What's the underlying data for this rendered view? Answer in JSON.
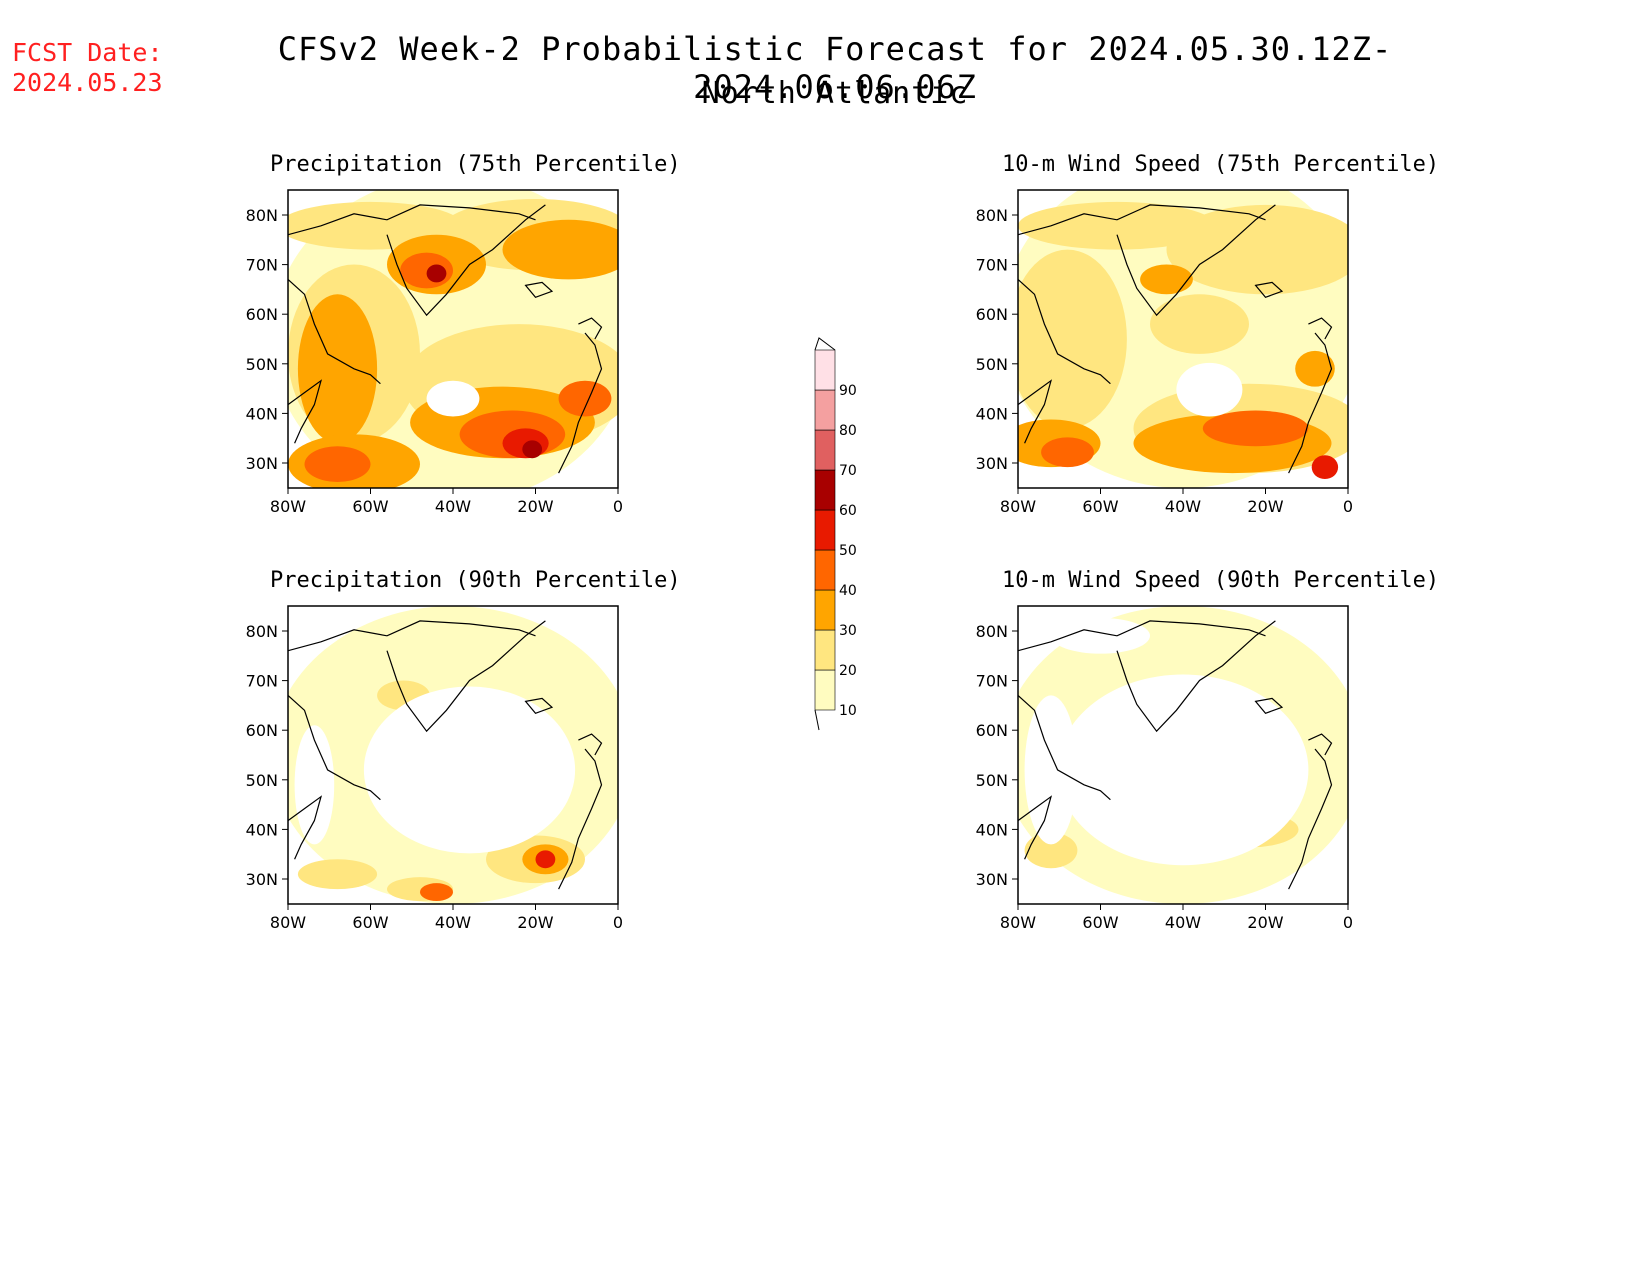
{
  "header": {
    "fcst_label": "FCST Date:",
    "fcst_date": "2024.05.23",
    "title": "CFSv2 Week-2 Probabilistic Forecast for 2024.05.30.12Z-2024.06.06.06Z",
    "region": "North Atlantic"
  },
  "axes": {
    "lat_ticks": [
      "80N",
      "70N",
      "60N",
      "50N",
      "40N",
      "30N"
    ],
    "lon_ticks": [
      "80W",
      "60W",
      "40W",
      "20W",
      "0"
    ]
  },
  "colorbar": {
    "levels": [
      "10",
      "20",
      "30",
      "40",
      "50",
      "60",
      "70",
      "80",
      "90"
    ],
    "colors": [
      "#fffcc0",
      "#ffe680",
      "#ffa500",
      "#ff6600",
      "#e81a00",
      "#a80000",
      "#e06060",
      "#f4a0a0",
      "#ffe0e6"
    ]
  },
  "panels": [
    {
      "id": "precip-75",
      "title": "Precipitation (75th Percentile)",
      "intensity": "high"
    },
    {
      "id": "wind-75",
      "title": "10-m Wind Speed (75th Percentile)",
      "intensity": "medium"
    },
    {
      "id": "precip-90",
      "title": "Precipitation (90th Percentile)",
      "intensity": "low"
    },
    {
      "id": "wind-90",
      "title": "10-m Wind Speed (90th Percentile)",
      "intensity": "lowest"
    }
  ]
}
